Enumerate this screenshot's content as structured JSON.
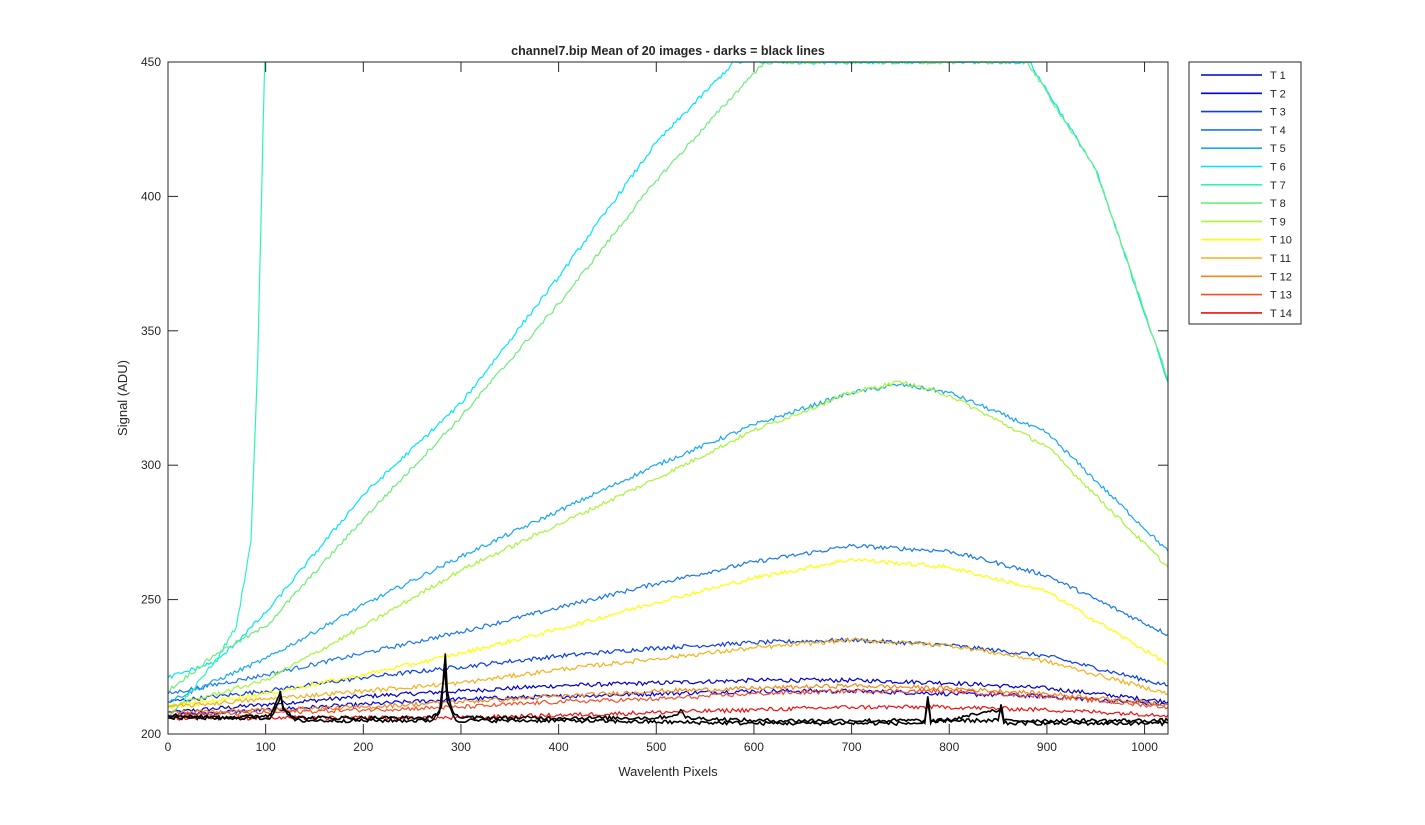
{
  "chart_data": {
    "type": "line",
    "title": "channel7.bip  Mean of 20 images - darks = black lines",
    "xlabel": "Wavelenth Pixels",
    "ylabel": "Signal (ADU)",
    "xlim": [
      0,
      1024
    ],
    "ylim": [
      200,
      450
    ],
    "xticks": [
      0,
      100,
      200,
      300,
      400,
      500,
      600,
      700,
      800,
      900,
      1000
    ],
    "yticks": [
      200,
      250,
      300,
      350,
      400,
      450
    ],
    "grid": false,
    "legend_position": "outside-top-right",
    "series": [
      {
        "name": "T 1",
        "color": "#0000cc",
        "points": [
          [
            0,
            208
          ],
          [
            100,
            211
          ],
          [
            200,
            214
          ],
          [
            300,
            216
          ],
          [
            400,
            218
          ],
          [
            500,
            219
          ],
          [
            600,
            220
          ],
          [
            700,
            220
          ],
          [
            800,
            219
          ],
          [
            900,
            217
          ],
          [
            1024,
            212
          ]
        ]
      },
      {
        "name": "T 2",
        "color": "#0000ee",
        "points": [
          [
            0,
            207
          ],
          [
            100,
            209
          ],
          [
            200,
            211
          ],
          [
            300,
            213
          ],
          [
            400,
            214
          ],
          [
            500,
            215
          ],
          [
            600,
            216
          ],
          [
            700,
            216
          ],
          [
            800,
            215
          ],
          [
            900,
            214
          ],
          [
            1024,
            211
          ]
        ]
      },
      {
        "name": "T 3",
        "color": "#0b3fe6",
        "points": [
          [
            0,
            212
          ],
          [
            100,
            216
          ],
          [
            200,
            221
          ],
          [
            300,
            225
          ],
          [
            400,
            229
          ],
          [
            500,
            232
          ],
          [
            600,
            234
          ],
          [
            700,
            235
          ],
          [
            800,
            233
          ],
          [
            900,
            229
          ],
          [
            1024,
            218
          ]
        ]
      },
      {
        "name": "T 4",
        "color": "#1a78ea",
        "points": [
          [
            0,
            215
          ],
          [
            100,
            222
          ],
          [
            200,
            230
          ],
          [
            300,
            238
          ],
          [
            400,
            247
          ],
          [
            500,
            256
          ],
          [
            600,
            264
          ],
          [
            700,
            270
          ],
          [
            800,
            268
          ],
          [
            900,
            259
          ],
          [
            1024,
            237
          ]
        ]
      },
      {
        "name": "T 5",
        "color": "#19a8f0",
        "points": [
          [
            0,
            212
          ],
          [
            100,
            228
          ],
          [
            200,
            248
          ],
          [
            300,
            266
          ],
          [
            400,
            283
          ],
          [
            500,
            300
          ],
          [
            600,
            315
          ],
          [
            700,
            327
          ],
          [
            750,
            330
          ],
          [
            800,
            327
          ],
          [
            900,
            312
          ],
          [
            1024,
            268
          ]
        ]
      },
      {
        "name": "T 6",
        "color": "#00e5ff",
        "points": [
          [
            0,
            221
          ],
          [
            50,
            227
          ],
          [
            100,
            245
          ],
          [
            200,
            289
          ],
          [
            300,
            323
          ],
          [
            400,
            370
          ],
          [
            500,
            420
          ],
          [
            580,
            450
          ],
          [
            882,
            450
          ],
          [
            950,
            410
          ],
          [
            1024,
            331
          ]
        ]
      },
      {
        "name": "T 7",
        "color": "#2cf5b8",
        "points": [
          [
            0,
            206
          ],
          [
            20,
            214
          ],
          [
            50,
            228
          ],
          [
            70,
            240
          ],
          [
            85,
            272
          ],
          [
            92,
            340
          ],
          [
            97,
            420
          ],
          [
            99,
            450
          ]
        ]
      },
      {
        "name": "T 8",
        "color": "#6eee7a",
        "points": [
          [
            0,
            216
          ],
          [
            50,
            230
          ],
          [
            100,
            240
          ],
          [
            200,
            280
          ],
          [
            300,
            318
          ],
          [
            400,
            360
          ],
          [
            500,
            406
          ],
          [
            600,
            446
          ],
          [
            612,
            450
          ],
          [
            880,
            450
          ],
          [
            950,
            410
          ],
          [
            1024,
            332
          ]
        ]
      },
      {
        "name": "T 9",
        "color": "#a8f53c",
        "points": [
          [
            0,
            210
          ],
          [
            100,
            220
          ],
          [
            200,
            240
          ],
          [
            300,
            261
          ],
          [
            400,
            278
          ],
          [
            500,
            295
          ],
          [
            600,
            313
          ],
          [
            700,
            327
          ],
          [
            750,
            331
          ],
          [
            800,
            326
          ],
          [
            900,
            307
          ],
          [
            1024,
            262
          ]
        ]
      },
      {
        "name": "T 10",
        "color": "#ffff00",
        "points": [
          [
            0,
            210
          ],
          [
            100,
            215
          ],
          [
            200,
            222
          ],
          [
            300,
            230
          ],
          [
            400,
            239
          ],
          [
            500,
            249
          ],
          [
            600,
            258
          ],
          [
            700,
            265
          ],
          [
            800,
            262
          ],
          [
            900,
            253
          ],
          [
            1024,
            226
          ]
        ]
      },
      {
        "name": "T 11",
        "color": "#f5b01c",
        "points": [
          [
            0,
            210
          ],
          [
            100,
            213
          ],
          [
            200,
            216
          ],
          [
            300,
            219
          ],
          [
            400,
            224
          ],
          [
            500,
            228
          ],
          [
            600,
            232
          ],
          [
            700,
            235
          ],
          [
            800,
            233
          ],
          [
            900,
            227
          ],
          [
            1024,
            215
          ]
        ]
      },
      {
        "name": "T 12",
        "color": "#f08a1a",
        "points": [
          [
            0,
            208
          ],
          [
            100,
            209
          ],
          [
            200,
            210
          ],
          [
            300,
            212
          ],
          [
            400,
            214
          ],
          [
            500,
            216
          ],
          [
            600,
            217
          ],
          [
            700,
            218
          ],
          [
            800,
            217
          ],
          [
            900,
            215
          ],
          [
            1024,
            211
          ]
        ]
      },
      {
        "name": "T 13",
        "color": "#f0502a",
        "points": [
          [
            0,
            207
          ],
          [
            100,
            208
          ],
          [
            200,
            209
          ],
          [
            300,
            210
          ],
          [
            400,
            212
          ],
          [
            500,
            213
          ],
          [
            600,
            215
          ],
          [
            700,
            216
          ],
          [
            800,
            216
          ],
          [
            900,
            214
          ],
          [
            1024,
            210
          ]
        ]
      },
      {
        "name": "T 14",
        "color": "#ee1111",
        "points": [
          [
            0,
            206
          ],
          [
            100,
            206
          ],
          [
            200,
            206
          ],
          [
            300,
            206
          ],
          [
            400,
            207
          ],
          [
            500,
            208
          ],
          [
            600,
            209
          ],
          [
            700,
            210
          ],
          [
            800,
            210
          ],
          [
            900,
            209
          ],
          [
            1024,
            207
          ]
        ]
      }
    ],
    "dark_series": [
      {
        "color": "#000000",
        "points": [
          [
            0,
            207
          ],
          [
            60,
            206
          ],
          [
            105,
            207
          ],
          [
            112,
            213
          ],
          [
            115,
            216
          ],
          [
            118,
            210
          ],
          [
            130,
            206
          ],
          [
            200,
            206
          ],
          [
            270,
            206
          ],
          [
            278,
            208
          ],
          [
            282,
            220
          ],
          [
            284,
            230
          ],
          [
            286,
            216
          ],
          [
            292,
            208
          ],
          [
            300,
            206
          ],
          [
            400,
            206
          ],
          [
            500,
            206
          ],
          [
            520,
            207
          ],
          [
            525,
            209
          ],
          [
            530,
            206
          ],
          [
            600,
            205
          ],
          [
            700,
            205
          ],
          [
            775,
            205
          ],
          [
            778,
            214
          ],
          [
            781,
            205
          ],
          [
            850,
            205
          ],
          [
            853,
            211
          ],
          [
            856,
            205
          ],
          [
            900,
            205
          ],
          [
            1024,
            205
          ]
        ]
      },
      {
        "color": "#000000",
        "points": [
          [
            0,
            206
          ],
          [
            105,
            206
          ],
          [
            112,
            211
          ],
          [
            115,
            214
          ],
          [
            118,
            209
          ],
          [
            130,
            205
          ],
          [
            270,
            205
          ],
          [
            280,
            210
          ],
          [
            283,
            226
          ],
          [
            286,
            212
          ],
          [
            295,
            205
          ],
          [
            400,
            205
          ],
          [
            600,
            204
          ],
          [
            700,
            204
          ],
          [
            775,
            204
          ],
          [
            778,
            212
          ],
          [
            781,
            204
          ],
          [
            853,
            209
          ],
          [
            856,
            204
          ],
          [
            1024,
            204
          ]
        ]
      }
    ]
  }
}
